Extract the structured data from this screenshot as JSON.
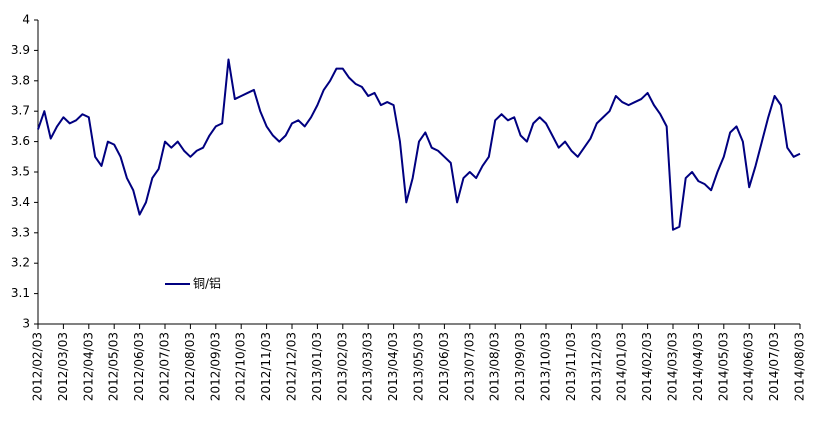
{
  "chart_data": {
    "type": "line",
    "categories": [
      "2012/02/03",
      null,
      null,
      null,
      "2012/03/03",
      null,
      null,
      null,
      "2012/04/03",
      null,
      null,
      null,
      "2012/05/03",
      null,
      null,
      null,
      "2012/06/03",
      null,
      null,
      null,
      "2012/07/03",
      null,
      null,
      null,
      "2012/08/03",
      null,
      null,
      null,
      "2012/09/03",
      null,
      null,
      null,
      "2012/10/03",
      null,
      null,
      null,
      "2012/11/03",
      null,
      null,
      null,
      "2012/12/03",
      null,
      null,
      null,
      "2013/01/03",
      null,
      null,
      null,
      "2013/02/03",
      null,
      null,
      null,
      "2013/03/03",
      null,
      null,
      null,
      "2013/04/03",
      null,
      null,
      null,
      "2013/05/03",
      null,
      null,
      null,
      "2013/06/03",
      null,
      null,
      null,
      "2013/07/03",
      null,
      null,
      null,
      "2013/08/03",
      null,
      null,
      null,
      "2013/09/03",
      null,
      null,
      null,
      "2013/10/03",
      null,
      null,
      null,
      "2013/11/03",
      null,
      null,
      null,
      "2013/12/03",
      null,
      null,
      null,
      "2014/01/03",
      null,
      null,
      null,
      "2014/02/03",
      null,
      null,
      null,
      "2014/03/03",
      null,
      null,
      null,
      "2014/04/03",
      null,
      null,
      null,
      "2014/05/03",
      null,
      null,
      null,
      "2014/06/03",
      null,
      null,
      null,
      "2014/07/03",
      null,
      null,
      null,
      "2014/08/03"
    ],
    "series": [
      {
        "name": "铜/铝",
        "color": "#000080",
        "values": [
          3.64,
          3.7,
          3.61,
          3.65,
          3.68,
          3.66,
          3.67,
          3.69,
          3.68,
          3.55,
          3.52,
          3.6,
          3.59,
          3.55,
          3.48,
          3.44,
          3.36,
          3.4,
          3.48,
          3.51,
          3.6,
          3.58,
          3.6,
          3.57,
          3.55,
          3.57,
          3.58,
          3.62,
          3.65,
          3.66,
          3.87,
          3.74,
          3.75,
          3.76,
          3.77,
          3.7,
          3.65,
          3.62,
          3.6,
          3.62,
          3.66,
          3.67,
          3.65,
          3.68,
          3.72,
          3.77,
          3.8,
          3.84,
          3.84,
          3.81,
          3.79,
          3.78,
          3.75,
          3.76,
          3.72,
          3.73,
          3.72,
          3.6,
          3.4,
          3.48,
          3.6,
          3.63,
          3.58,
          3.57,
          3.55,
          3.53,
          3.4,
          3.48,
          3.5,
          3.48,
          3.52,
          3.55,
          3.67,
          3.69,
          3.67,
          3.68,
          3.62,
          3.6,
          3.66,
          3.68,
          3.66,
          3.62,
          3.58,
          3.6,
          3.57,
          3.55,
          3.58,
          3.61,
          3.66,
          3.68,
          3.7,
          3.75,
          3.73,
          3.72,
          3.73,
          3.74,
          3.76,
          3.72,
          3.69,
          3.65,
          3.31,
          3.32,
          3.48,
          3.5,
          3.47,
          3.46,
          3.44,
          3.5,
          3.55,
          3.63,
          3.65,
          3.6,
          3.45,
          3.52,
          3.6,
          3.68,
          3.75,
          3.72,
          3.58,
          3.55,
          3.56
        ]
      }
    ],
    "ylim": [
      3,
      4
    ],
    "yticks": [
      3,
      3.1,
      3.2,
      3.3,
      3.4,
      3.5,
      3.6,
      3.7,
      3.8,
      3.9,
      4
    ],
    "grid": false,
    "legend": "inside"
  }
}
